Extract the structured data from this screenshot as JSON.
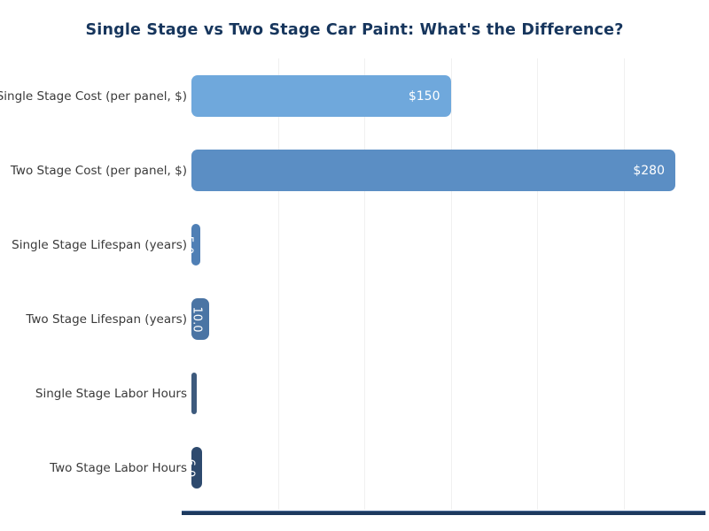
{
  "chart_data": {
    "type": "bar",
    "orientation": "horizontal",
    "title": "Single Stage vs Two Stage Car Paint: What's the Difference?",
    "xlabel": "",
    "ylabel": "",
    "categories": [
      "Single Stage Cost (per panel, $)",
      "Two Stage Cost (per panel, $)",
      "Single Stage Lifespan (years)",
      "Two Stage Lifespan (years)",
      "Single Stage Labor Hours",
      "Two Stage Labor Hours"
    ],
    "values": [
      150,
      280,
      5.0,
      10.0,
      3.0,
      6.0
    ],
    "value_labels": [
      "$150",
      "$280",
      "5.0",
      "10.0",
      "3.0",
      "6.0"
    ],
    "bar_colors": [
      "#6fa8dc",
      "#5b8ec4",
      "#4f7fb5",
      "#4a74a4",
      "#3d5a7d",
      "#2e4a6e"
    ],
    "xlim": [
      0,
      287
    ],
    "gridline_values": [
      50,
      100,
      150,
      200,
      250
    ],
    "grid": "vertical-only, no tick labels",
    "legend_position": "none",
    "title_color": "#17365d",
    "axis_line_color": "#1e3a5f",
    "gridline_color": "#f0f0f0",
    "value_label_color": "#ffffff"
  }
}
